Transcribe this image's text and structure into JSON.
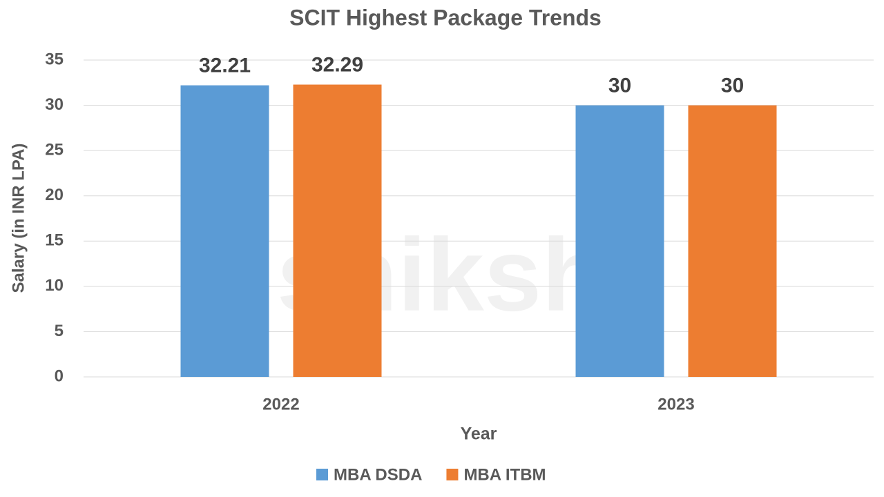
{
  "chart_data": {
    "type": "bar",
    "title": "SCIT Highest Package Trends",
    "watermark": "shiksha",
    "x_label": "Year",
    "y_label": "Salary (in INR LPA)",
    "categories": [
      "2022",
      "2023"
    ],
    "series": [
      {
        "name": "MBA DSDA",
        "color": "#5b9bd5",
        "values": [
          32.21,
          30
        ]
      },
      {
        "name": "MBA ITBM",
        "color": "#ed7d31",
        "values": [
          32.29,
          30
        ]
      }
    ],
    "ylim": [
      0,
      35
    ],
    "yticks": [
      0,
      5,
      10,
      15,
      20,
      25,
      30,
      35
    ],
    "grid": true,
    "legend": "bottom"
  }
}
